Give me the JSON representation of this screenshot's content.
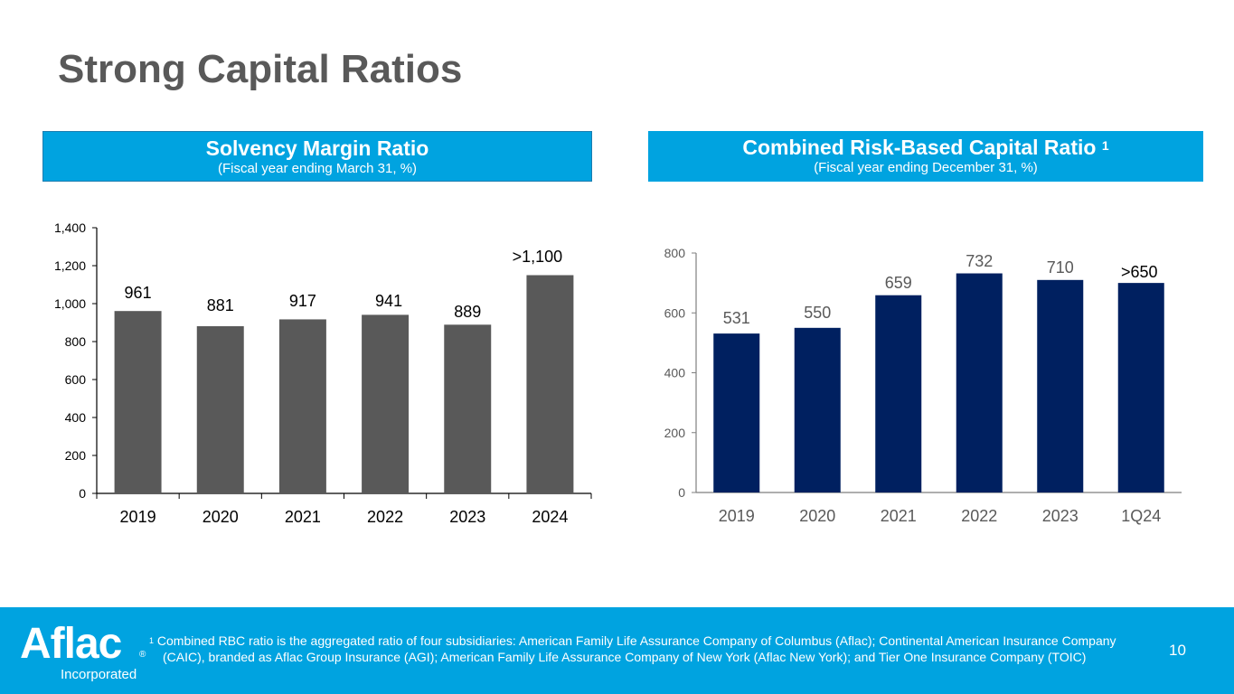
{
  "slide": {
    "title": "Strong Capital Ratios",
    "page_number": "10"
  },
  "left_panel": {
    "heading": "Solvency Margin Ratio",
    "subheading": "(Fiscal year ending March 31, %)"
  },
  "right_panel": {
    "heading": "Combined Risk-Based Capital Ratio",
    "heading_footnote_marker": "1",
    "subheading": "(Fiscal year ending December 31, %)"
  },
  "footer": {
    "logo_text": "Aflac",
    "logo_registered": "®",
    "logo_subtext": "Incorporated",
    "footnote_marker": "1",
    "footnote_line1": "Combined RBC ratio is the aggregated ratio of four subsidiaries: American Family Life Assurance Company of Columbus (Aflac); Continental American Insurance Company",
    "footnote_line2": "(CAIC), branded as Aflac Group Insurance (AGI); American Family Life Assurance Company of New York (Aflac New York); and Tier One Insurance Company (TOIC)"
  },
  "colors": {
    "header_blue": "#00a3e0",
    "left_bars": "#595959",
    "right_bars": "#002060",
    "title_gray": "#595959"
  },
  "chart_data": [
    {
      "type": "bar",
      "title": "Solvency Margin Ratio",
      "subtitle": "(Fiscal year ending March 31, %)",
      "categories": [
        "2019",
        "2020",
        "2021",
        "2022",
        "2023",
        "2024"
      ],
      "values": [
        961,
        881,
        917,
        941,
        889,
        1150
      ],
      "data_labels": [
        "961",
        "881",
        "917",
        "941",
        "889",
        ">1,100"
      ],
      "xlabel": "",
      "ylabel": "",
      "ylim": [
        0,
        1400
      ],
      "yticks": [
        0,
        200,
        400,
        600,
        800,
        1000,
        1200,
        1400
      ],
      "ytick_labels": [
        "0",
        "200",
        "400",
        "600",
        "800",
        "1,000",
        "1,200",
        "1,400"
      ],
      "grid": false,
      "legend": "none"
    },
    {
      "type": "bar",
      "title": "Combined Risk-Based Capital Ratio 1",
      "subtitle": "(Fiscal year ending December 31, %)",
      "categories": [
        "2019",
        "2020",
        "2021",
        "2022",
        "2023",
        "1Q24"
      ],
      "values": [
        531,
        550,
        659,
        732,
        710,
        700
      ],
      "data_labels": [
        "531",
        "550",
        "659",
        "732",
        "710",
        ">650"
      ],
      "xlabel": "",
      "ylabel": "",
      "ylim": [
        0,
        800
      ],
      "yticks": [
        0,
        200,
        400,
        600,
        800
      ],
      "ytick_labels": [
        "0",
        "200",
        "400",
        "600",
        "800"
      ],
      "grid": false,
      "legend": "none"
    }
  ]
}
